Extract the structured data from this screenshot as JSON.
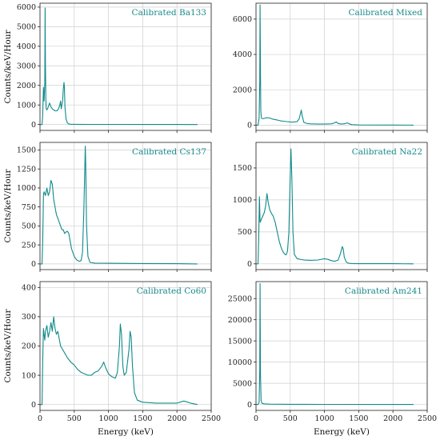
{
  "figure": {
    "line_color": "#108a8a",
    "grid": true
  },
  "chart_data": [
    {
      "type": "line",
      "title": "Calibrated Ba133",
      "xlabel": "",
      "ylabel": "Counts/keV/Hour",
      "xlim": [
        0,
        2500
      ],
      "ylim": [
        -300,
        6200
      ],
      "xticks": [
        0,
        500,
        1000,
        1500,
        2000,
        2500
      ],
      "yticks": [
        0,
        1000,
        2000,
        3000,
        4000,
        5000,
        6000
      ],
      "xtick_labels_shown": false,
      "series": [
        {
          "x": [
            0,
            30,
            40,
            50,
            60,
            70,
            75,
            80,
            85,
            90,
            100,
            110,
            120,
            140,
            160,
            180,
            200,
            220,
            250,
            270,
            290,
            300,
            310,
            330,
            340,
            350,
            356,
            365,
            380,
            400,
            420,
            450,
            500,
            700,
            1000,
            1500,
            2000,
            2300
          ],
          "y": [
            0,
            0,
            500,
            1900,
            1200,
            2100,
            5950,
            3000,
            1400,
            800,
            750,
            800,
            900,
            1100,
            900,
            800,
            750,
            700,
            700,
            800,
            1000,
            1200,
            800,
            1200,
            1800,
            2150,
            1900,
            900,
            300,
            80,
            30,
            15,
            10,
            8,
            5,
            3,
            2,
            0
          ]
        }
      ]
    },
    {
      "type": "line",
      "title": "Calibrated Mixed",
      "xlabel": "",
      "ylabel": "",
      "xlim": [
        0,
        2500
      ],
      "ylim": [
        -300,
        6900
      ],
      "xticks": [
        0,
        500,
        1000,
        1500,
        2000,
        2500
      ],
      "yticks": [
        0,
        2000,
        4000,
        6000
      ],
      "xtick_labels_shown": false,
      "series": [
        {
          "x": [
            0,
            30,
            45,
            55,
            60,
            65,
            70,
            80,
            90,
            100,
            120,
            150,
            200,
            250,
            300,
            350,
            400,
            450,
            500,
            550,
            600,
            630,
            650,
            661,
            675,
            700,
            750,
            800,
            900,
            1000,
            1100,
            1150,
            1173,
            1200,
            1250,
            1300,
            1332,
            1360,
            1400,
            1500,
            2000,
            2300
          ],
          "y": [
            0,
            0,
            400,
            2500,
            6800,
            3000,
            800,
            400,
            380,
            360,
            380,
            420,
            400,
            330,
            300,
            250,
            220,
            200,
            180,
            170,
            200,
            350,
            650,
            850,
            500,
            150,
            90,
            70,
            60,
            60,
            70,
            130,
            180,
            90,
            60,
            80,
            130,
            70,
            25,
            10,
            5,
            0
          ]
        }
      ]
    },
    {
      "type": "line",
      "title": "Calibrated Cs137",
      "xlabel": "",
      "ylabel": "Counts/keV/Hour",
      "xlim": [
        0,
        2500
      ],
      "ylim": [
        -75,
        1600
      ],
      "xticks": [
        0,
        500,
        1000,
        1500,
        2000,
        2500
      ],
      "yticks": [
        0,
        250,
        500,
        750,
        1000,
        1250,
        1500
      ],
      "xtick_labels_shown": false,
      "series": [
        {
          "x": [
            0,
            30,
            40,
            50,
            60,
            80,
            100,
            120,
            140,
            160,
            180,
            200,
            220,
            240,
            260,
            280,
            300,
            320,
            340,
            360,
            380,
            400,
            420,
            440,
            460,
            480,
            500,
            520,
            540,
            560,
            580,
            600,
            620,
            640,
            655,
            661,
            668,
            680,
            700,
            730,
            800,
            1000,
            1500,
            2000,
            2300
          ],
          "y": [
            0,
            0,
            300,
            900,
            950,
            900,
            1000,
            900,
            950,
            1100,
            1050,
            850,
            750,
            650,
            600,
            550,
            500,
            450,
            450,
            400,
            420,
            430,
            400,
            300,
            200,
            150,
            100,
            70,
            50,
            40,
            35,
            45,
            150,
            700,
            1300,
            1550,
            1300,
            500,
            100,
            20,
            10,
            8,
            5,
            3,
            0
          ]
        }
      ]
    },
    {
      "type": "line",
      "title": "Calibrated Na22",
      "xlabel": "",
      "ylabel": "",
      "xlim": [
        0,
        2500
      ],
      "ylim": [
        -90,
        1900
      ],
      "xticks": [
        0,
        500,
        1000,
        1500,
        2000,
        2500
      ],
      "yticks": [
        0,
        500,
        1000,
        1500
      ],
      "xtick_labels_shown": false,
      "series": [
        {
          "x": [
            0,
            30,
            40,
            50,
            60,
            80,
            100,
            120,
            140,
            160,
            180,
            200,
            220,
            250,
            280,
            300,
            320,
            340,
            360,
            380,
            400,
            420,
            440,
            460,
            480,
            495,
            511,
            525,
            540,
            560,
            600,
            700,
            800,
            900,
            1000,
            1050,
            1100,
            1150,
            1200,
            1230,
            1260,
            1275,
            1290,
            1320,
            1350,
            1400,
            1500,
            2000,
            2300
          ],
          "y": [
            0,
            0,
            400,
            1050,
            650,
            700,
            750,
            800,
            900,
            1100,
            950,
            850,
            800,
            750,
            650,
            550,
            450,
            350,
            280,
            220,
            180,
            150,
            140,
            200,
            500,
            1200,
            1800,
            1300,
            500,
            150,
            80,
            60,
            55,
            60,
            80,
            70,
            50,
            40,
            60,
            150,
            270,
            230,
            100,
            25,
            10,
            5,
            3,
            2,
            0
          ]
        }
      ]
    },
    {
      "type": "line",
      "title": "Calibrated Co60",
      "xlabel": "Energy (keV)",
      "ylabel": "Counts/keV/Hour",
      "xlim": [
        0,
        2500
      ],
      "ylim": [
        -20,
        420
      ],
      "xticks": [
        0,
        500,
        1000,
        1500,
        2000,
        2500
      ],
      "yticks": [
        0,
        100,
        200,
        300,
        400
      ],
      "xtick_labels_shown": true,
      "series": [
        {
          "x": [
            0,
            30,
            40,
            50,
            60,
            70,
            80,
            100,
            120,
            140,
            160,
            180,
            200,
            220,
            240,
            260,
            300,
            350,
            400,
            450,
            500,
            550,
            600,
            650,
            700,
            750,
            800,
            850,
            900,
            930,
            960,
            1000,
            1050,
            1100,
            1130,
            1160,
            1173,
            1190,
            1210,
            1230,
            1260,
            1300,
            1315,
            1332,
            1350,
            1380,
            1420,
            1500,
            1700,
            2000,
            2100,
            2200,
            2300
          ],
          "y": [
            0,
            0,
            150,
            260,
            240,
            220,
            250,
            270,
            230,
            250,
            280,
            250,
            300,
            260,
            240,
            250,
            200,
            180,
            160,
            145,
            135,
            120,
            110,
            105,
            100,
            100,
            110,
            115,
            130,
            145,
            125,
            105,
            95,
            90,
            110,
            200,
            275,
            240,
            130,
            100,
            110,
            190,
            250,
            230,
            130,
            40,
            15,
            8,
            5,
            5,
            12,
            5,
            0
          ]
        }
      ]
    },
    {
      "type": "line",
      "title": "Calibrated Am241",
      "xlabel": "Energy (keV)",
      "ylabel": "",
      "xlim": [
        0,
        2500
      ],
      "ylim": [
        -1400,
        29000
      ],
      "xticks": [
        0,
        500,
        1000,
        1500,
        2000,
        2500
      ],
      "yticks": [
        0,
        5000,
        10000,
        15000,
        20000,
        25000
      ],
      "xtick_labels_shown": true,
      "series": [
        {
          "x": [
            0,
            30,
            45,
            55,
            60,
            65,
            75,
            90,
            120,
            200,
            500,
            1000,
            2000,
            2300
          ],
          "y": [
            0,
            0,
            500,
            8000,
            28500,
            7000,
            800,
            250,
            150,
            80,
            30,
            10,
            5,
            0
          ]
        }
      ]
    }
  ]
}
